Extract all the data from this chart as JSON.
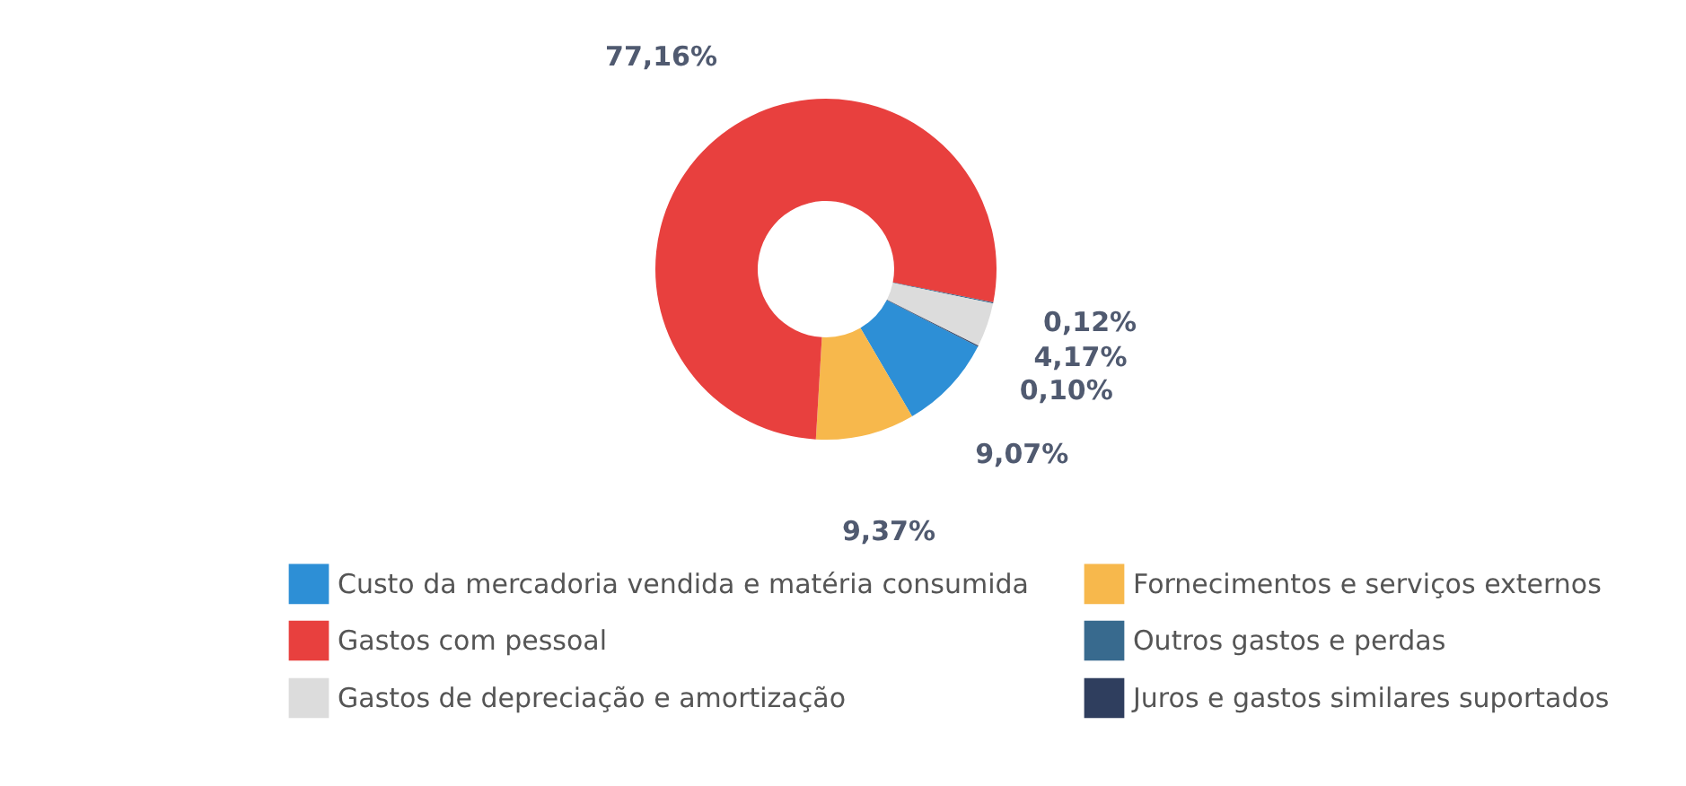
{
  "chart_data": {
    "type": "donut",
    "categories": [
      "Custo da mercadoria vendida e matéria consumida",
      "Fornecimentos e serviços externos",
      "Gastos com pessoal",
      "Outros gastos e perdas",
      "Gastos de depreciação e amortização",
      "Juros e gastos similares suportados"
    ],
    "values": [
      9.07,
      9.37,
      77.16,
      0.12,
      4.17,
      0.1
    ],
    "colors": [
      "#2d8fd6",
      "#f7b84c",
      "#e8403e",
      "#386a8e",
      "#dcdcdc",
      "#2f3e5e"
    ],
    "value_labels": [
      "9,07%",
      "9,37%",
      "77,16%",
      "0,12%",
      "4,17%",
      "0,10%"
    ],
    "legend": "bottom"
  }
}
